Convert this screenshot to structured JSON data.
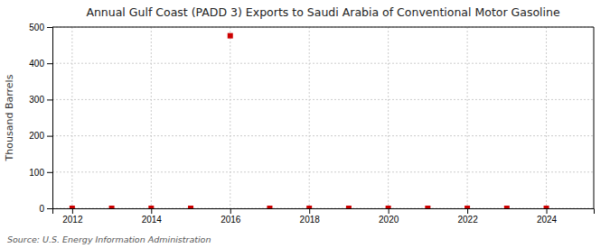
{
  "chart_data": {
    "type": "scatter",
    "title": "Annual Gulf Coast (PADD 3) Exports to Saudi Arabia of Conventional Motor Gasoline",
    "ylabel": "Thousand Barrels",
    "annotations": [
      "Source: U.S. Energy Information Administration"
    ],
    "x": [
      2012,
      2013,
      2014,
      2015,
      2016,
      2017,
      2018,
      2019,
      2020,
      2021,
      2022,
      2023,
      2024
    ],
    "values": [
      0,
      0,
      0,
      0,
      476,
      0,
      0,
      0,
      0,
      0,
      0,
      0,
      0
    ],
    "color": "#cc0000",
    "marker": "square",
    "xlim": [
      2011.5,
      2025.2
    ],
    "xticks": [
      2012,
      2014,
      2016,
      2018,
      2020,
      2022,
      2024
    ],
    "ylim": [
      0,
      500
    ],
    "yticks": [
      0,
      100,
      200,
      300,
      400,
      500
    ],
    "grid": true
  }
}
